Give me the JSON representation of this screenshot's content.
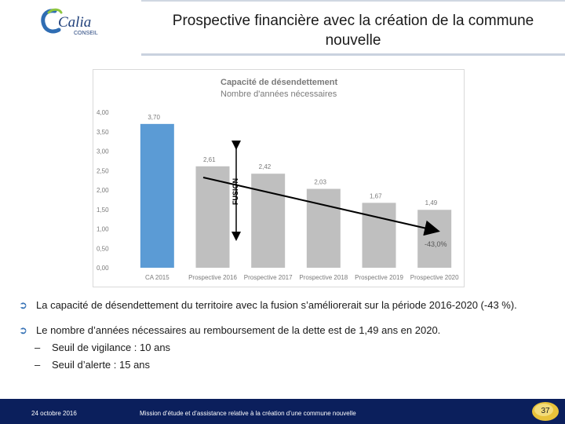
{
  "logo": {
    "text": "Calia",
    "sub": "CONSEIL"
  },
  "slide": {
    "title": "Prospective financière avec la création de la commune nouvelle",
    "page_number": "37"
  },
  "chart_data": {
    "type": "bar",
    "title": "Capacité de désendettement",
    "subtitle": "Nombre d'années nécessaires",
    "categories": [
      "CA 2015",
      "Prospective 2016",
      "Prospective 2017",
      "Prospective 2018",
      "Prospective 2019",
      "Prospective 2020"
    ],
    "values": [
      3.7,
      2.61,
      2.42,
      2.03,
      1.67,
      1.49
    ],
    "value_labels": [
      "3,70",
      "2,61",
      "2,42",
      "2,03",
      "1,67",
      "1,49"
    ],
    "bar_colors": [
      "#5b9bd5",
      "#bfbfbf",
      "#bfbfbf",
      "#bfbfbf",
      "#bfbfbf",
      "#bfbfbf"
    ],
    "ylim": [
      0,
      4
    ],
    "yticks": [
      "0,00",
      "0,50",
      "1,00",
      "1,50",
      "2,00",
      "2,50",
      "3,00",
      "3,50",
      "4,00"
    ],
    "annotation_fusion": "FUSION",
    "annotation_trend": "-43,0%",
    "grid": false,
    "xlabel": "",
    "ylabel": ""
  },
  "bullets": [
    "La capacité de désendettement du territoire avec la fusion s’améliorerait sur la période 2016-2020 (-43 %).",
    "Le nombre d’années nécessaires au remboursement de la dette est de 1,49 ans en 2020."
  ],
  "sub_bullets": [
    "Seuil de vigilance : 10 ans",
    "Seuil d’alerte : 15 ans"
  ],
  "footer": {
    "date": "24 octobre 2016",
    "text": "Mission d’étude et d’assistance relative à la création d’une commune nouvelle"
  }
}
